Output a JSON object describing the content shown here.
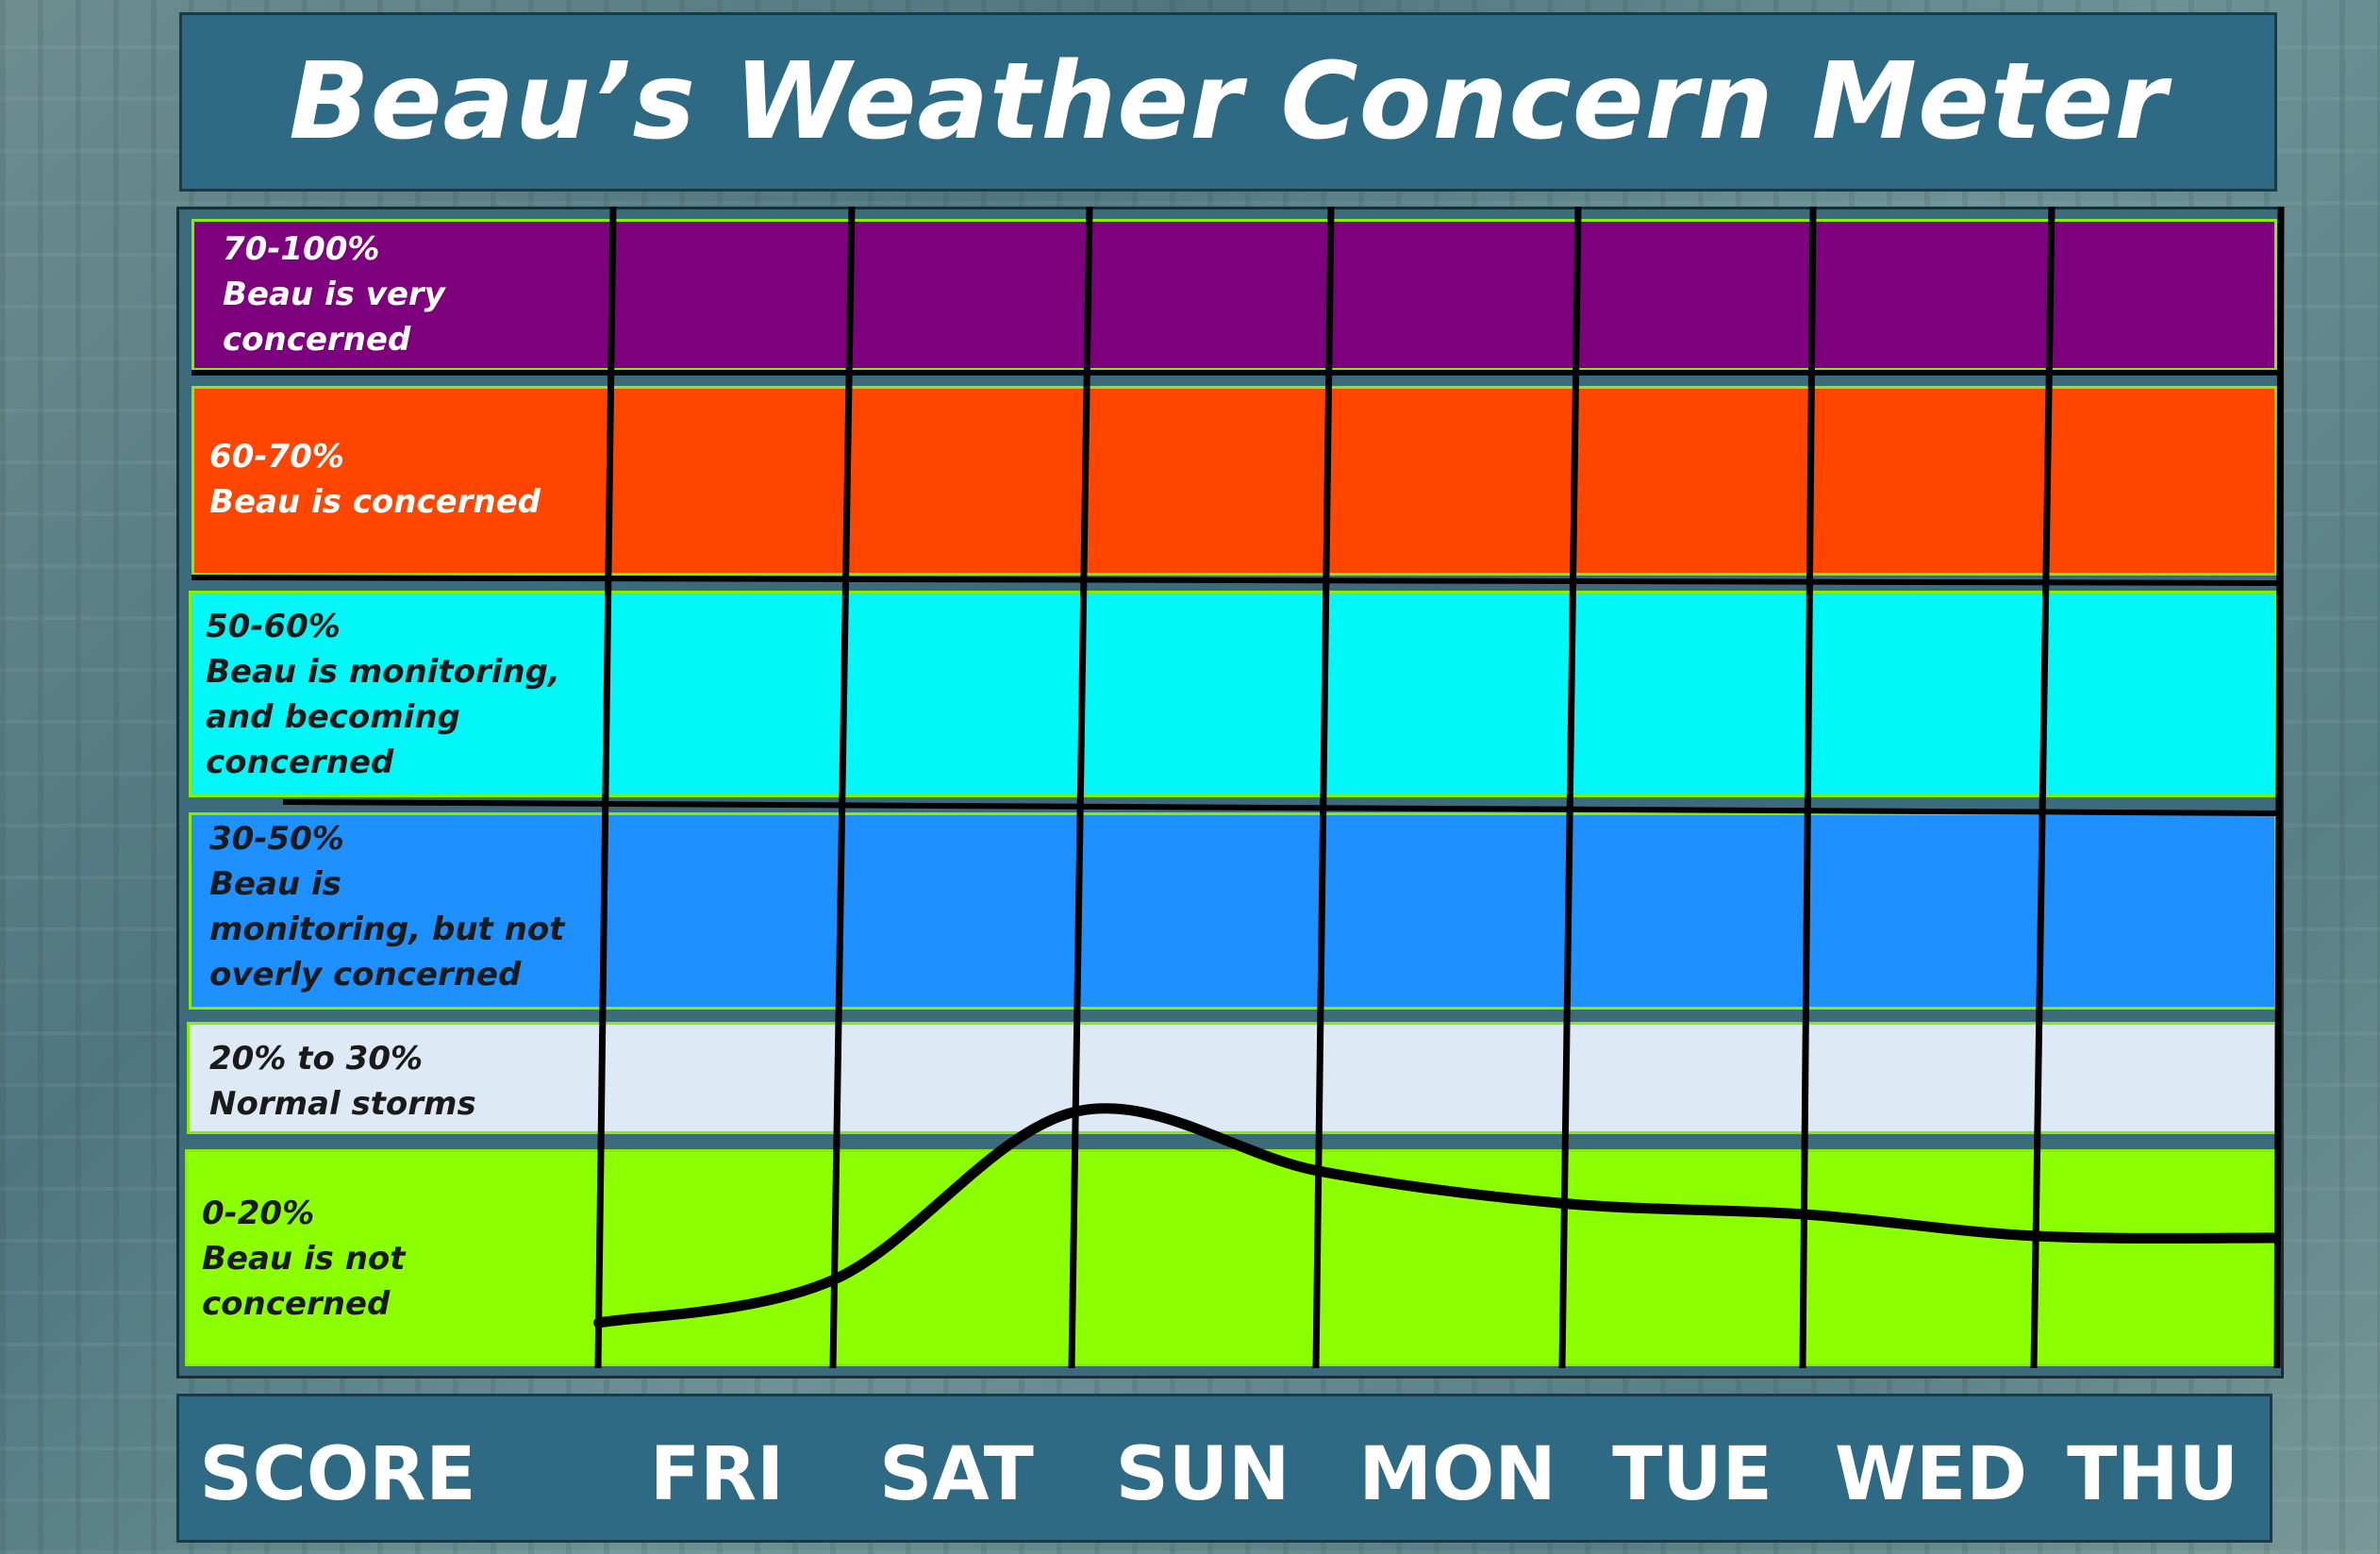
{
  "title": "Beau’s Weather Concern Meter",
  "chart_data": {
    "type": "line",
    "title": "Beau’s Weather Concern Meter",
    "xlabel": "SCORE",
    "categories": [
      "FRI",
      "SAT",
      "SUN",
      "MON",
      "TUE",
      "WED",
      "THU"
    ],
    "values": [
      4,
      8,
      22,
      18,
      15,
      14,
      12
    ],
    "unit": "%",
    "ylim": [
      0,
      100
    ],
    "line_color": "#000000",
    "bands": [
      {
        "range": "70-100%",
        "text": "Beau is very\nconcerned",
        "min": 70,
        "max": 100,
        "color": "#7d007d",
        "text_color": "#ffffff"
      },
      {
        "range": "60-70%",
        "text": "Beau is concerned",
        "min": 60,
        "max": 70,
        "color": "#ff4500",
        "text_color": "#ffffff"
      },
      {
        "range": "50-60%",
        "text": "Beau is monitoring,\nand becoming\nconcerned",
        "min": 50,
        "max": 60,
        "color": "#00f8f8",
        "text_color": "#1a1a1a"
      },
      {
        "range": "30-50%",
        "text": "Beau is\nmonitoring, but  not\noverly  concerned",
        "min": 30,
        "max": 50,
        "color": "#1e90ff",
        "text_color": "#1a1a1a"
      },
      {
        "range": "20% to 30%",
        "text": "Normal storms",
        "min": 20,
        "max": 30,
        "color": "#dde9f5",
        "text_color": "#1a1a1a"
      },
      {
        "range": "0-20%",
        "text": "Beau is not\nconcerned",
        "min": 0,
        "max": 20,
        "color": "#8cff00",
        "text_color": "#1a1a1a"
      }
    ]
  }
}
